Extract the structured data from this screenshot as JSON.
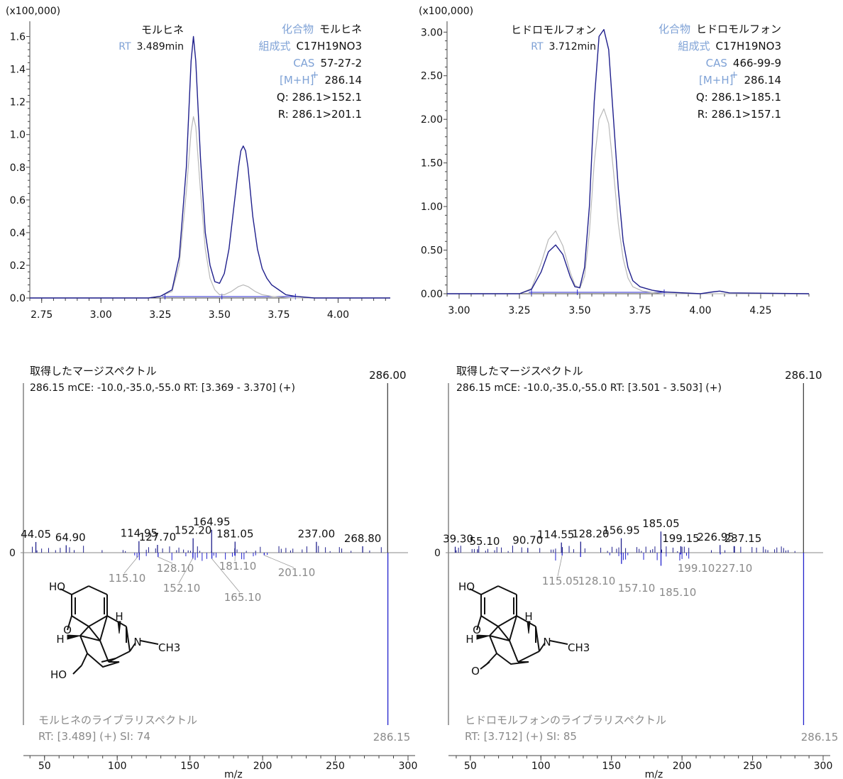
{
  "chart_data": [
    {
      "type": "line",
      "panel": "chromatogram-morphine",
      "scale_label": "(x100,000)",
      "y_ticks": [
        "0.0",
        "0.2",
        "0.4",
        "0.6",
        "0.8",
        "1.0",
        "1.2",
        "1.4",
        "1.6"
      ],
      "x_ticks": [
        "2.75",
        "3.00",
        "3.25",
        "3.50",
        "3.75",
        "4.00"
      ],
      "xlim": [
        2.7,
        4.22
      ],
      "ylim": [
        0,
        1.65
      ],
      "peak_label": "モルヒネ",
      "rt_label": "RT",
      "rt_value": "3.489min",
      "info": [
        {
          "key": "化合物",
          "value": "モルヒネ"
        },
        {
          "key": "組成式",
          "value": "C17H19NO3"
        },
        {
          "key": "CAS",
          "value": "57-27-2"
        },
        {
          "key": "[M+H]",
          "sup": "+",
          "value": "286.14"
        },
        {
          "key": "",
          "value": "Q: 286.1>152.1"
        },
        {
          "key": "",
          "value": "R: 286.1>201.1"
        }
      ],
      "series": [
        {
          "color": "#1f1f8c",
          "x": [
            2.7,
            3.2,
            3.25,
            3.3,
            3.33,
            3.36,
            3.38,
            3.39,
            3.4,
            3.42,
            3.44,
            3.46,
            3.48,
            3.5,
            3.52,
            3.54,
            3.56,
            3.58,
            3.59,
            3.6,
            3.61,
            3.62,
            3.64,
            3.66,
            3.68,
            3.7,
            3.72,
            3.75,
            3.78,
            3.82,
            3.9,
            4.22
          ],
          "y": [
            0.0,
            0.0,
            0.01,
            0.05,
            0.25,
            0.8,
            1.45,
            1.6,
            1.45,
            0.85,
            0.4,
            0.2,
            0.1,
            0.09,
            0.15,
            0.3,
            0.55,
            0.8,
            0.9,
            0.93,
            0.9,
            0.8,
            0.5,
            0.3,
            0.18,
            0.12,
            0.08,
            0.05,
            0.02,
            0.01,
            0.0,
            0.0
          ]
        },
        {
          "color": "#b8b8b8",
          "x": [
            2.7,
            3.2,
            3.25,
            3.3,
            3.33,
            3.36,
            3.38,
            3.39,
            3.4,
            3.42,
            3.44,
            3.46,
            3.48,
            3.5,
            3.52,
            3.55,
            3.58,
            3.6,
            3.62,
            3.65,
            3.68,
            3.72,
            3.8,
            4.22
          ],
          "y": [
            0.0,
            0.0,
            0.01,
            0.04,
            0.2,
            0.65,
            1.02,
            1.11,
            1.05,
            0.65,
            0.3,
            0.12,
            0.05,
            0.02,
            0.02,
            0.04,
            0.07,
            0.08,
            0.07,
            0.04,
            0.02,
            0.01,
            0.0,
            0.0
          ]
        }
      ]
    },
    {
      "type": "line",
      "panel": "chromatogram-hydromorphone",
      "scale_label": "(x100,000)",
      "y_ticks": [
        "0.00",
        "0.50",
        "1.00",
        "1.50",
        "2.00",
        "2.50",
        "3.00"
      ],
      "x_ticks": [
        "3.00",
        "3.25",
        "3.50",
        "3.75",
        "4.00",
        "4.25"
      ],
      "xlim": [
        2.95,
        4.45
      ],
      "ylim": [
        0,
        3.1
      ],
      "peak_label": "ヒドロモルフォン",
      "rt_label": "RT",
      "rt_value": "3.712min",
      "info": [
        {
          "key": "化合物",
          "value": "ヒドロモルフォン"
        },
        {
          "key": "組成式",
          "value": "C17H19NO3"
        },
        {
          "key": "CAS",
          "value": "466-99-9"
        },
        {
          "key": "[M+H]",
          "sup": "+",
          "value": "286.14"
        },
        {
          "key": "",
          "value": "Q: 286.1>185.1"
        },
        {
          "key": "",
          "value": "R: 286.1>157.1"
        }
      ],
      "series": [
        {
          "color": "#1f1f8c",
          "x": [
            2.95,
            3.25,
            3.3,
            3.34,
            3.37,
            3.4,
            3.43,
            3.46,
            3.48,
            3.5,
            3.52,
            3.54,
            3.56,
            3.58,
            3.6,
            3.62,
            3.64,
            3.66,
            3.68,
            3.7,
            3.72,
            3.75,
            3.8,
            3.85,
            4.0,
            4.05,
            4.08,
            4.12,
            4.45
          ],
          "y": [
            0.0,
            0.0,
            0.05,
            0.25,
            0.48,
            0.56,
            0.45,
            0.2,
            0.08,
            0.07,
            0.3,
            1.0,
            2.2,
            2.95,
            3.03,
            2.8,
            2.0,
            1.2,
            0.6,
            0.3,
            0.15,
            0.08,
            0.04,
            0.02,
            0.0,
            0.02,
            0.03,
            0.01,
            0.0
          ]
        },
        {
          "color": "#b8b8b8",
          "x": [
            2.95,
            3.25,
            3.3,
            3.34,
            3.37,
            3.4,
            3.43,
            3.46,
            3.48,
            3.5,
            3.52,
            3.54,
            3.56,
            3.58,
            3.6,
            3.62,
            3.64,
            3.66,
            3.68,
            3.7,
            3.72,
            3.76,
            3.85,
            4.45
          ],
          "y": [
            0.0,
            0.0,
            0.06,
            0.35,
            0.62,
            0.72,
            0.55,
            0.25,
            0.1,
            0.06,
            0.2,
            0.7,
            1.5,
            2.0,
            2.12,
            1.95,
            1.4,
            0.8,
            0.4,
            0.18,
            0.08,
            0.03,
            0.0,
            0.0
          ]
        }
      ]
    },
    {
      "type": "bar",
      "panel": "spectrum-morphine",
      "title": "取得したマージスペクトル",
      "subtitle": "286.15 mCE: -10.0,-35.0,-55.0 RT: [3.369 - 3.370] (+)",
      "top_max_label": "286.00",
      "bottom_max_label": "286.15",
      "zero_label": "0",
      "xlabel": "m/z",
      "x_ticks": [
        "50",
        "100",
        "150",
        "200",
        "250",
        "300"
      ],
      "xlim": [
        35,
        300
      ],
      "acquired_peaks": [
        {
          "mz": 44.05,
          "label": "44.05",
          "rel": 0.063
        },
        {
          "mz": 64.9,
          "label": "64.90",
          "rel": 0.044
        },
        {
          "mz": 114.95,
          "label": "114.95",
          "rel": 0.068
        },
        {
          "mz": 127.7,
          "label": "127.70",
          "rel": 0.046
        },
        {
          "mz": 152.2,
          "label": "152.20",
          "rel": 0.085
        },
        {
          "mz": 164.95,
          "label": "164.95",
          "rel": 0.135
        },
        {
          "mz": 181.05,
          "label": "181.05",
          "rel": 0.065
        },
        {
          "mz": 237.0,
          "label": "237.00",
          "rel": 0.064
        },
        {
          "mz": 268.8,
          "label": "268.80",
          "rel": 0.038
        },
        {
          "mz": 286.0,
          "label": "286.00",
          "rel": 1.0
        }
      ],
      "library_peaks": [
        {
          "mz": 115.1,
          "label": "115.10",
          "rel": 0.014
        },
        {
          "mz": 128.1,
          "label": "128.10",
          "rel": 0.025
        },
        {
          "mz": 152.1,
          "label": "152.10",
          "rel": 0.03
        },
        {
          "mz": 165.1,
          "label": "165.10",
          "rel": 0.035
        },
        {
          "mz": 181.1,
          "label": "181.10",
          "rel": 0.018
        },
        {
          "mz": 201.1,
          "label": "201.10",
          "rel": 0.015
        },
        {
          "mz": 286.15,
          "label": "286.15",
          "rel": 1.0
        }
      ],
      "library_title": "モルヒネのライブラリスペクトル",
      "match_info": "RT:  [3.489] (+) SI: 74"
    },
    {
      "type": "bar",
      "panel": "spectrum-hydromorphone",
      "title": "取得したマージスペクトル",
      "subtitle": "286.15 mCE: -10.0,-35.0,-55.0 RT: [3.501 - 3.503] (+)",
      "top_max_label": "286.10",
      "bottom_max_label": "286.15",
      "zero_label": "0",
      "xlabel": "m/z",
      "x_ticks": [
        "50",
        "100",
        "150",
        "200",
        "250",
        "300"
      ],
      "xlim": [
        35,
        300
      ],
      "acquired_peaks": [
        {
          "mz": 39.3,
          "label": "39.30",
          "rel": 0.035
        },
        {
          "mz": 55.1,
          "label": "55.10",
          "rel": 0.02
        },
        {
          "mz": 90.7,
          "label": "90.70",
          "rel": 0.028
        },
        {
          "mz": 114.55,
          "label": "114.55",
          "rel": 0.06
        },
        {
          "mz": 128.2,
          "label": "128.20",
          "rel": 0.065
        },
        {
          "mz": 156.95,
          "label": "156.95",
          "rel": 0.085
        },
        {
          "mz": 185.05,
          "label": "185.05",
          "rel": 0.125
        },
        {
          "mz": 199.15,
          "label": "199.15",
          "rel": 0.038
        },
        {
          "mz": 226.95,
          "label": "226.95",
          "rel": 0.045
        },
        {
          "mz": 237.15,
          "label": "237.15",
          "rel": 0.038
        },
        {
          "mz": 286.1,
          "label": "286.10",
          "rel": 1.0
        }
      ],
      "library_peaks": [
        {
          "mz": 115.05,
          "label": "115.05",
          "rel": 0.016
        },
        {
          "mz": 128.1,
          "label": "128.10",
          "rel": 0.025
        },
        {
          "mz": 157.1,
          "label": "157.10",
          "rel": 0.065
        },
        {
          "mz": 185.1,
          "label": "185.10",
          "rel": 0.076
        },
        {
          "mz": 199.1,
          "label": "199.10",
          "rel": 0.01
        },
        {
          "mz": 227.1,
          "label": "227.10",
          "rel": 0.01
        },
        {
          "mz": 286.15,
          "label": "286.15",
          "rel": 1.0
        }
      ],
      "library_title": "ヒドロモルフォンのライブラリスペクトル",
      "match_info": "RT:  [3.712] (+) SI: 85"
    }
  ],
  "colors": {
    "trace": "#1f1f8c",
    "ref_trace": "#b8b8b8",
    "library": "#2222cc",
    "label_blue": "#7fa2d6"
  },
  "structures": [
    {
      "atoms": [
        "HO",
        "O",
        "H",
        "H",
        "N",
        "CH3",
        "HO"
      ]
    },
    {
      "atoms": [
        "HO",
        "O",
        "H",
        "H",
        "N",
        "CH3",
        "O"
      ]
    }
  ]
}
